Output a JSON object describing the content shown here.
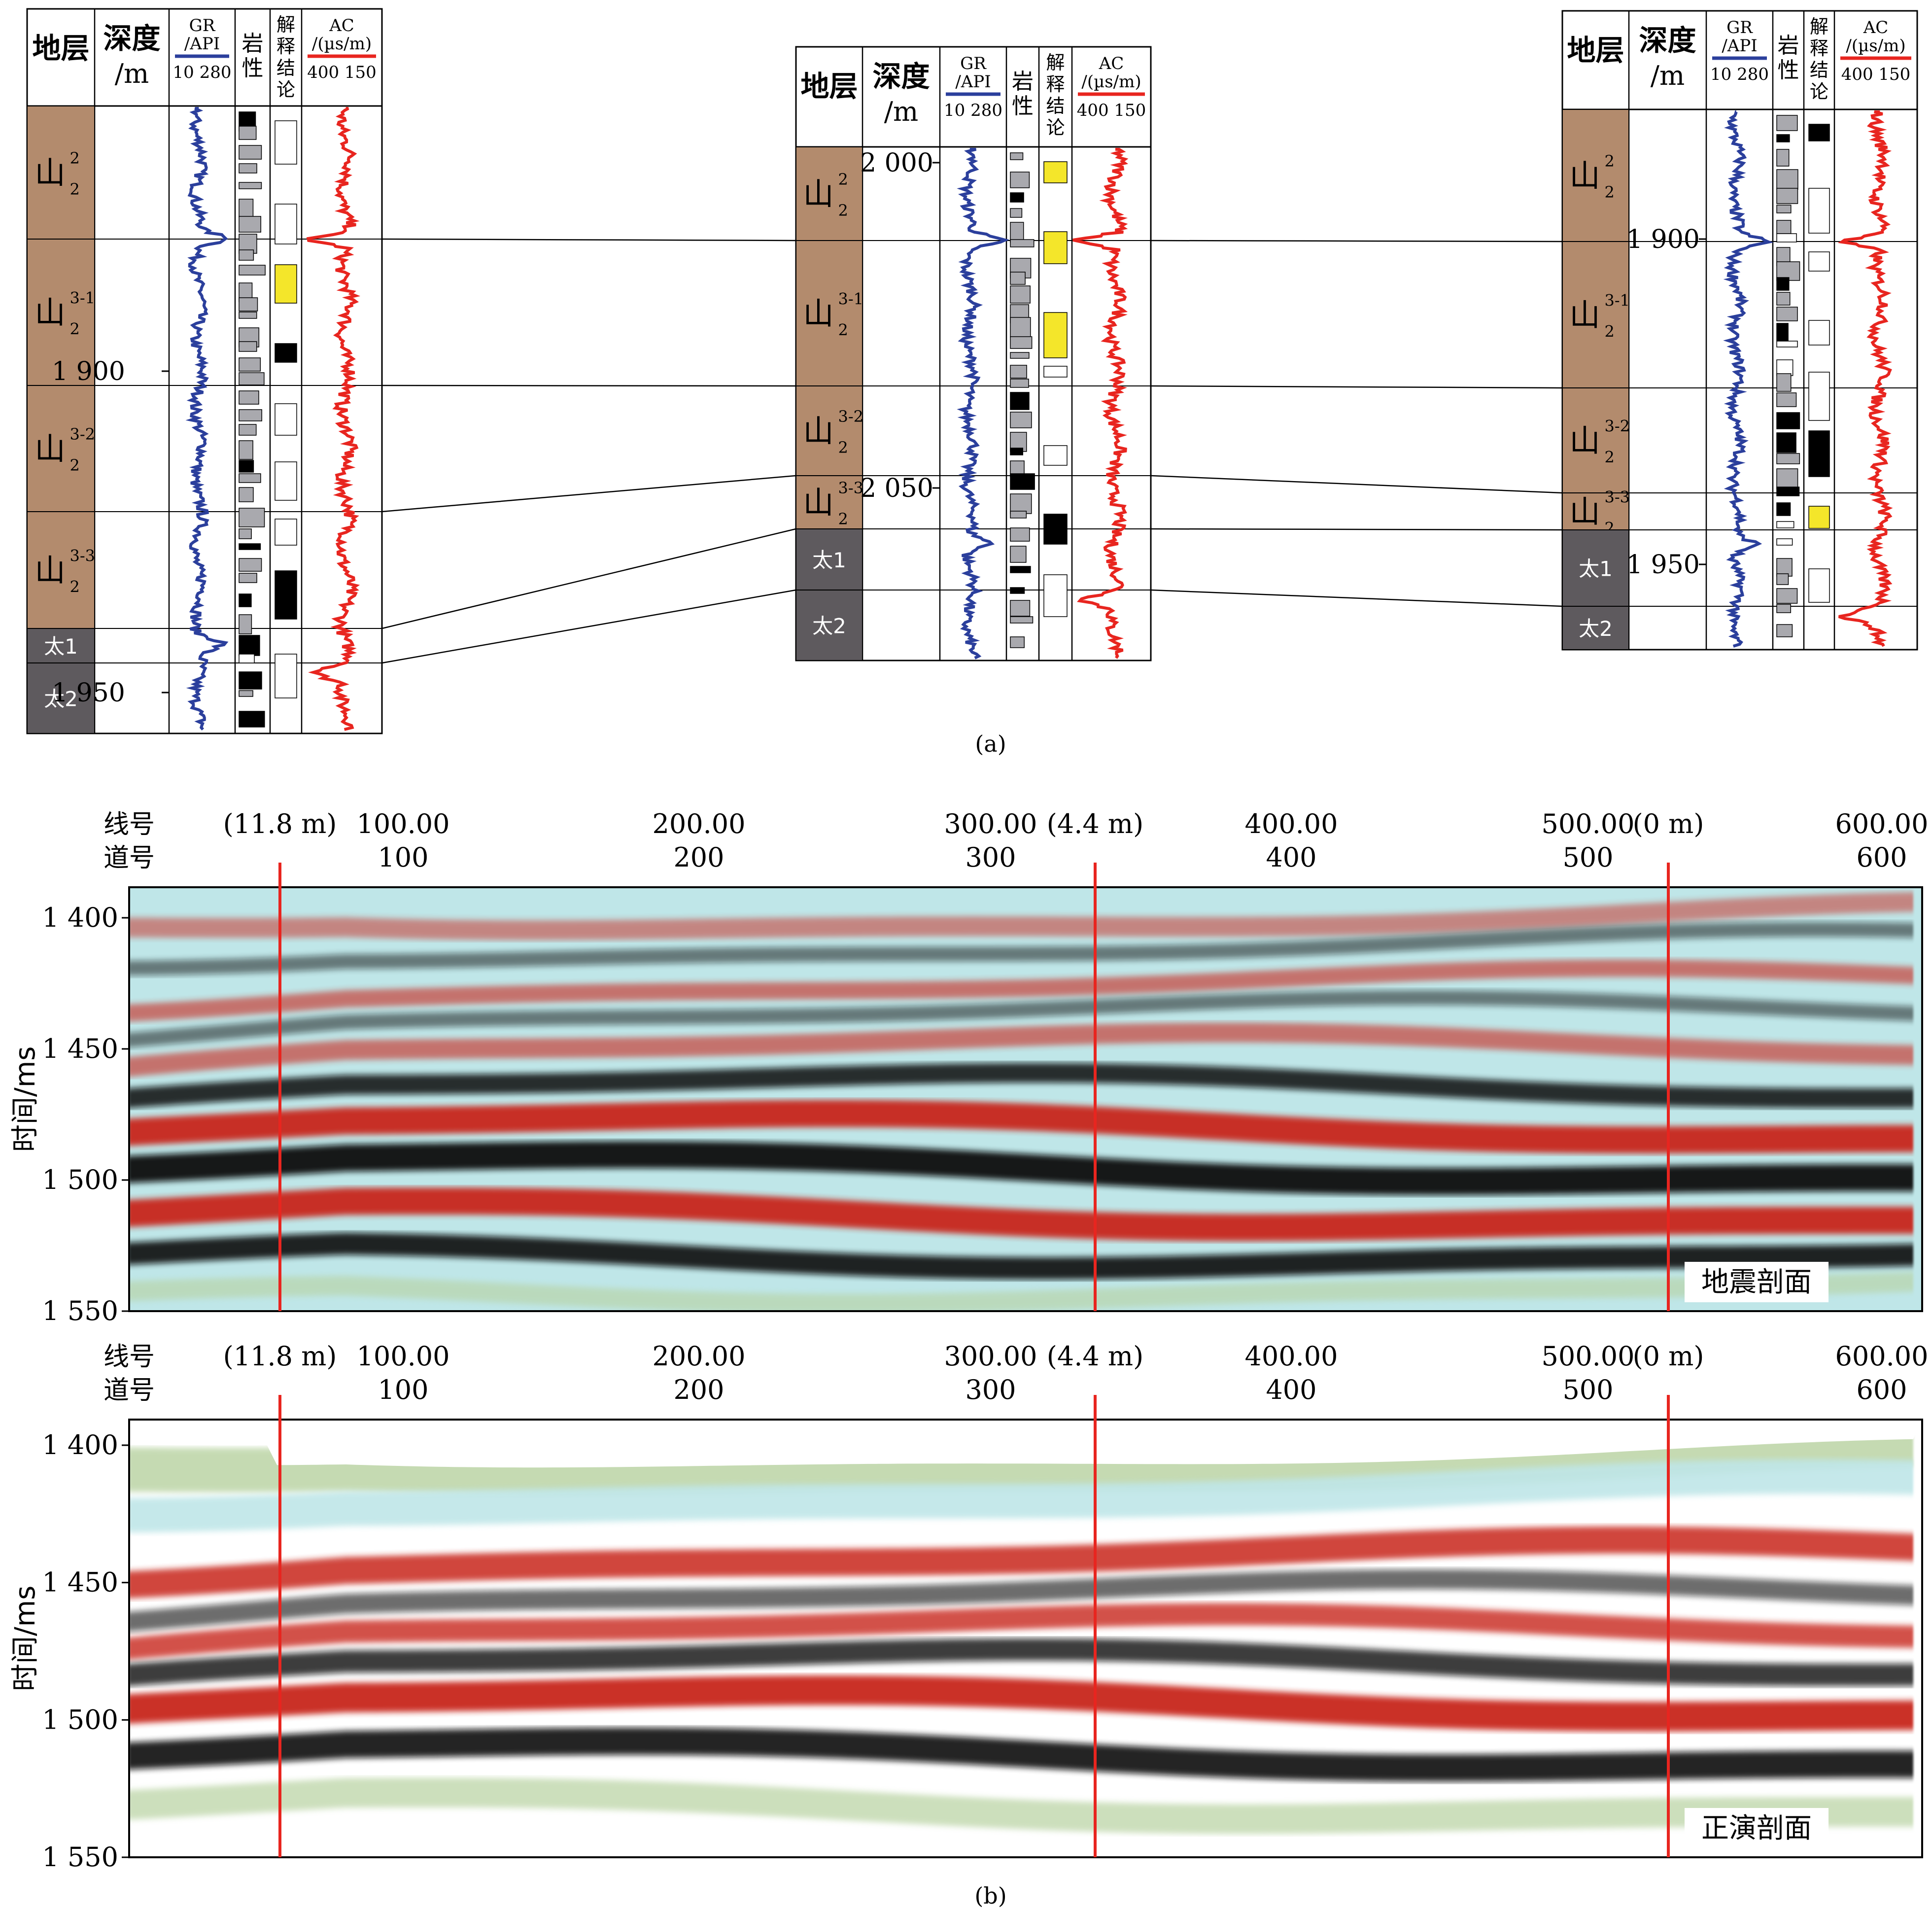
{
  "panel_a": {
    "caption": "(a)",
    "headers": {
      "strata": "地层",
      "depth_line1": "深度",
      "depth_line2": "/m",
      "gr_line1": "GR",
      "gr_line2": "/API",
      "gr_scale": "10  280",
      "litho_line1": "岩",
      "litho_line2": "性",
      "interp_chars": [
        "解",
        "释",
        "结",
        "论"
      ],
      "ac_line1": "AC",
      "ac_line2": "/(µs/m)",
      "ac_scale": "400  150"
    },
    "wells": [
      {
        "depth_labels": [
          "1 900",
          "1 950"
        ],
        "layers": [
          {
            "main": "山",
            "sup": "2",
            "sub": "2"
          },
          {
            "main": "山",
            "sup": "3-1",
            "sub": "2"
          },
          {
            "main": "山",
            "sup": "3-2",
            "sub": "2"
          },
          {
            "main": "山",
            "sup": "3-3",
            "sub": "2"
          },
          {
            "main": "太1",
            "sup": "",
            "sub": ""
          },
          {
            "main": "太2",
            "sup": "",
            "sub": ""
          }
        ]
      },
      {
        "depth_labels": [
          "2 000",
          "2 050"
        ],
        "layers": [
          {
            "main": "山",
            "sup": "2",
            "sub": "2"
          },
          {
            "main": "山",
            "sup": "3-1",
            "sub": "2"
          },
          {
            "main": "山",
            "sup": "3-2",
            "sub": "2"
          },
          {
            "main": "山",
            "sup": "3-3",
            "sub": "2"
          },
          {
            "main": "太1",
            "sup": "",
            "sub": ""
          },
          {
            "main": "太2",
            "sup": "",
            "sub": ""
          }
        ]
      },
      {
        "depth_labels": [
          "1 900",
          "1 950"
        ],
        "layers": [
          {
            "main": "山",
            "sup": "2",
            "sub": "2"
          },
          {
            "main": "山",
            "sup": "3-1",
            "sub": "2"
          },
          {
            "main": "山",
            "sup": "3-2",
            "sub": "2"
          },
          {
            "main": "山",
            "sup": "3-3",
            "sub": "2"
          },
          {
            "main": "太1",
            "sup": "",
            "sub": ""
          },
          {
            "main": "太2",
            "sup": "",
            "sub": ""
          }
        ]
      }
    ]
  },
  "panel_b": {
    "caption": "(b)",
    "line_label": "线号",
    "trace_label": "道号",
    "line_ticks": [
      "100.00",
      "200.00",
      "300.00",
      "400.00",
      "500.00",
      "600.00"
    ],
    "trace_ticks": [
      "100",
      "200",
      "300",
      "400",
      "500",
      "600"
    ],
    "well_markers": [
      "(11.8 m)",
      "(4.4 m)",
      "(0 m)"
    ],
    "y_label": "时间/ms",
    "y_ticks": [
      "1 400",
      "1 450",
      "1 500",
      "1 550"
    ],
    "sections": [
      {
        "name": "地震剖面"
      },
      {
        "name": "正演剖面"
      }
    ]
  },
  "colors": {
    "gr_curve": "#2b3f9c",
    "ac_curve": "#e8251f",
    "shan_layer": "#b38b6d",
    "tai_layer": "#5e5a5e",
    "marker_line": "#e8251f",
    "seis_red": "#c8281e",
    "seis_black": "#111111",
    "seis_cyan": "#bfe6e8",
    "seis_green": "#b7d2a0"
  }
}
